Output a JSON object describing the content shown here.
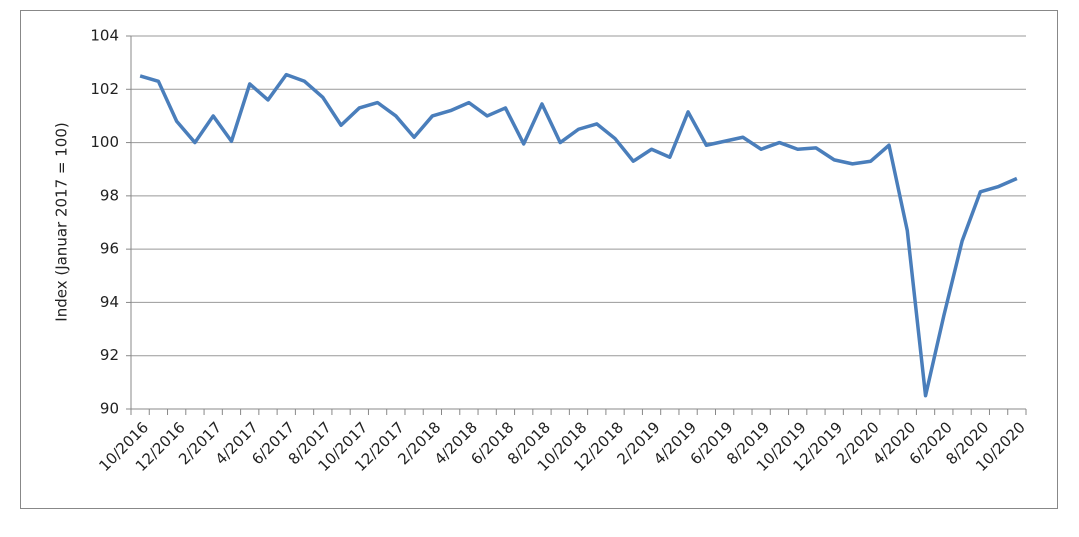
{
  "chart_data": {
    "type": "line",
    "y_label": "Index (Januar 2017 = 100)",
    "categories": [
      "10/2016",
      null,
      "12/2016",
      null,
      "2/2017",
      null,
      "4/2017",
      null,
      "6/2017",
      null,
      "8/2017",
      null,
      "10/2017",
      null,
      "12/2017",
      null,
      "2/2018",
      null,
      "4/2018",
      null,
      "6/2018",
      null,
      "8/2018",
      null,
      "10/2018",
      null,
      "12/2018",
      null,
      "2/2019",
      null,
      "4/2019",
      null,
      "6/2019",
      null,
      "8/2019",
      null,
      "10/2019",
      null,
      "12/2019",
      null,
      "2/2020",
      null,
      "4/2020",
      null,
      "6/2020",
      null,
      "8/2020",
      null,
      "10/2020"
    ],
    "values": [
      102.5,
      102.3,
      100.8,
      100.0,
      101.0,
      100.05,
      102.2,
      101.6,
      102.55,
      102.3,
      101.7,
      100.65,
      101.3,
      101.5,
      101.0,
      100.2,
      101.0,
      101.2,
      101.5,
      101.0,
      101.3,
      99.95,
      101.45,
      100.0,
      100.5,
      100.7,
      100.15,
      99.3,
      99.75,
      99.45,
      101.15,
      99.9,
      100.05,
      100.2,
      99.75,
      100.0,
      99.75,
      99.8,
      99.35,
      99.2,
      99.3,
      99.9,
      96.7,
      90.5,
      93.5,
      96.3,
      98.15,
      98.35,
      98.65
    ],
    "color": "#4a7ebb",
    "ylim": [
      90,
      104
    ],
    "yticks": [
      90,
      92,
      94,
      96,
      98,
      100,
      102,
      104
    ],
    "grid": true
  }
}
